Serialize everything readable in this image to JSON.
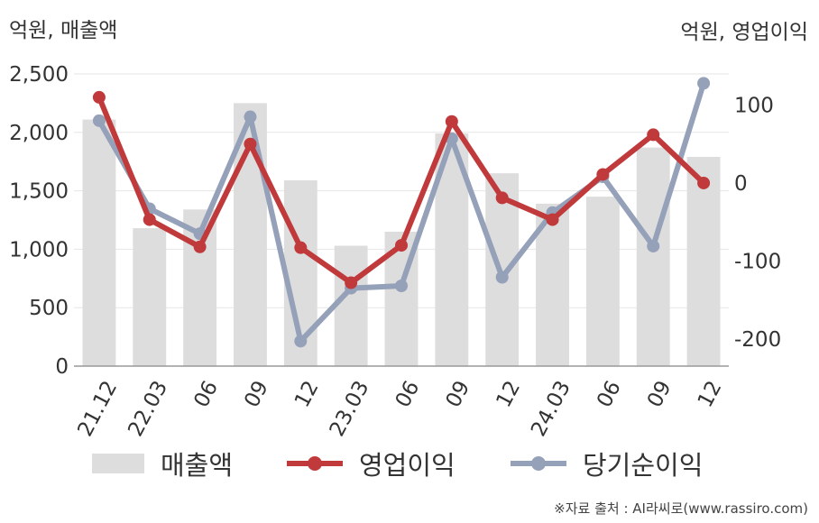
{
  "units": {
    "left": "억원, 매출액",
    "right": "억원, 영업이익"
  },
  "source": "※자료 출처 : AI라씨로(www.rassiro.com)",
  "colors": {
    "revenue": "#dddddd",
    "operating_profit": "#c0393b",
    "net_income": "#95a0b9",
    "grid": "#e6e6e6",
    "axis": "#999999"
  },
  "chart_data": {
    "type": "bar+line",
    "categories": [
      "21.12",
      "22.03",
      "06",
      "09",
      "12",
      "23.03",
      "06",
      "09",
      "12",
      "24.03",
      "06",
      "09",
      "12"
    ],
    "left_axis": {
      "ticks": [
        "0",
        "500",
        "1,000",
        "1,500",
        "2,000",
        "2,500"
      ],
      "range": [
        0,
        2500
      ]
    },
    "right_axis": {
      "ticks": [
        "-200",
        "-100",
        "0",
        "100"
      ],
      "range": [
        -235,
        140
      ]
    },
    "grid": true,
    "legend_position": "bottom",
    "series": [
      {
        "name": "매출액",
        "type": "bar",
        "axis": "left",
        "values": [
          2110,
          1180,
          1340,
          2250,
          1590,
          1030,
          1150,
          1990,
          1650,
          1390,
          1450,
          1870,
          1790
        ]
      },
      {
        "name": "영업이익",
        "type": "line",
        "axis": "right",
        "values": [
          110,
          -47,
          -82,
          50,
          -83,
          -128,
          -80,
          79,
          -19,
          -47,
          11,
          62,
          0
        ]
      },
      {
        "name": "당기순이익",
        "type": "line",
        "axis": "right",
        "values": [
          80,
          -33,
          -65,
          85,
          -203,
          -135,
          -132,
          57,
          -121,
          -38,
          8,
          -81,
          128
        ]
      }
    ]
  }
}
